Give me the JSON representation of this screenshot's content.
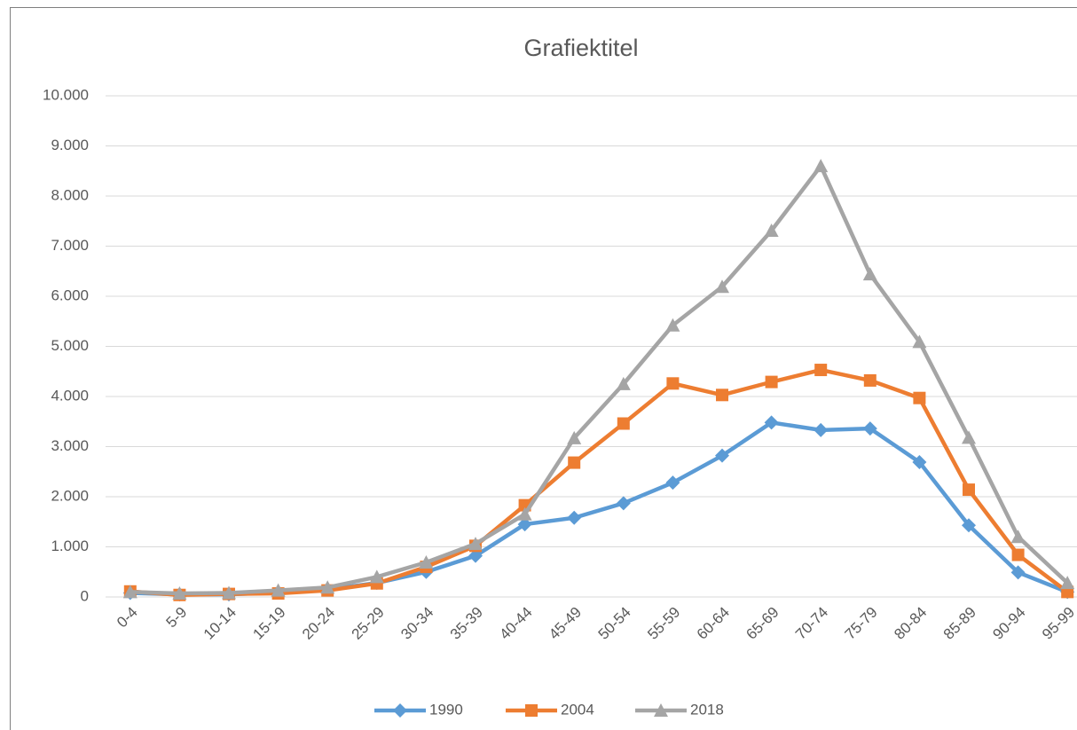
{
  "chart_data": {
    "type": "line",
    "title": "Grafiektitel",
    "categories": [
      "0-4",
      "5-9",
      "10-14",
      "15-19",
      "20-24",
      "25-29",
      "30-34",
      "35-39",
      "40-44",
      "45-49",
      "50-54",
      "55-59",
      "60-64",
      "65-69",
      "70-74",
      "75-79",
      "80-84",
      "85-89",
      "90-94",
      "95-99"
    ],
    "series": [
      {
        "name": "1990",
        "color": "#5b9bd5",
        "marker": "diamond",
        "values": [
          80,
          50,
          50,
          90,
          150,
          280,
          500,
          820,
          1450,
          1580,
          1870,
          2280,
          2820,
          3480,
          3330,
          3360,
          2690,
          1430,
          490,
          100
        ]
      },
      {
        "name": "2004",
        "color": "#ed7d31",
        "marker": "square",
        "values": [
          110,
          40,
          60,
          70,
          130,
          270,
          600,
          1020,
          1830,
          2680,
          3460,
          4260,
          4030,
          4290,
          4530,
          4320,
          3970,
          2140,
          840,
          100
        ]
      },
      {
        "name": "2018",
        "color": "#a5a5a5",
        "marker": "triangle",
        "values": [
          100,
          70,
          80,
          130,
          190,
          400,
          690,
          1060,
          1650,
          3170,
          4250,
          5420,
          6190,
          7310,
          8600,
          6440,
          5090,
          3180,
          1200,
          280
        ]
      }
    ],
    "ylim": [
      0,
      10000
    ],
    "yticks": [
      0,
      {
        "value": 1000,
        "label": "1.000"
      },
      {
        "value": 2000,
        "label": "2.000"
      },
      {
        "value": 3000,
        "label": "3.000"
      },
      {
        "value": 4000,
        "label": "4.000"
      },
      {
        "value": 5000,
        "label": "5.000"
      },
      {
        "value": 6000,
        "label": "6.000"
      },
      {
        "value": 7000,
        "label": "7.000"
      },
      {
        "value": 8000,
        "label": "8.000"
      },
      {
        "value": 9000,
        "label": "9.000"
      },
      {
        "value": 10000,
        "label": "10.000"
      }
    ],
    "grid": true,
    "legend": "bottom"
  }
}
